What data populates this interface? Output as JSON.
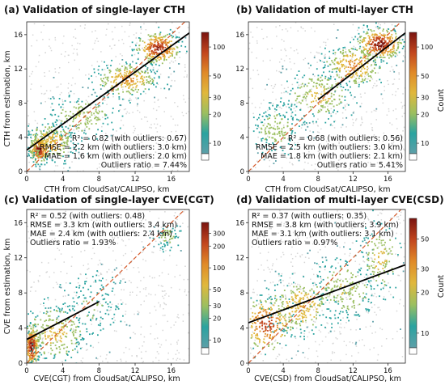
{
  "chart_data": [
    {
      "type": "scatter",
      "title": "(a) Validation of single-layer CTH",
      "xlabel": "CTH from CloudSat/CALIPSO, km",
      "ylabel": "CTH from estimation, km",
      "xlim": [
        0,
        18
      ],
      "ylim": [
        0,
        17.5
      ],
      "xticks": [
        0,
        4,
        8,
        12,
        16
      ],
      "yticks": [
        0,
        4,
        8,
        12,
        16
      ],
      "fit_line": [
        [
          0,
          2.5
        ],
        [
          18,
          16.2
        ]
      ],
      "stats": [
        "R² = 0.82 (with outliers: 0.67)",
        "RMSE = 2.2 km (with outliers: 3.0 km)",
        "MAE = 1.6 km (with outliers: 2.0 km)",
        "Outliers ratio = 7.44%"
      ],
      "stats_position": "bottom-right",
      "colorbar": {
        "label": "",
        "ticks": [
          "10",
          "20",
          "30",
          "50",
          "100"
        ]
      },
      "point_clusters": [
        {
          "x": 1.3,
          "y": 2.6,
          "sx": 0.5,
          "sy": 0.8,
          "n": 220,
          "level": 0.95
        },
        {
          "x": 2.5,
          "y": 3.5,
          "sx": 1.5,
          "sy": 1.2,
          "n": 260,
          "level": 0.55
        },
        {
          "x": 6.0,
          "y": 6.5,
          "sx": 2.0,
          "sy": 1.3,
          "n": 180,
          "level": 0.4
        },
        {
          "x": 11.0,
          "y": 10.8,
          "sx": 1.8,
          "sy": 1.0,
          "n": 260,
          "level": 0.6
        },
        {
          "x": 14.5,
          "y": 14.5,
          "sx": 1.2,
          "sy": 0.9,
          "n": 300,
          "level": 0.9
        }
      ]
    },
    {
      "type": "scatter",
      "title": "(b) Validation of multi-layer CTH",
      "xlabel": "CTH from CloudSat/CALIPSO, km",
      "ylabel": "",
      "xlim": [
        0,
        18
      ],
      "ylim": [
        0,
        17.5
      ],
      "xticks": [
        0,
        4,
        8,
        12,
        16
      ],
      "yticks": [
        0,
        4,
        8,
        12,
        16
      ],
      "fit_line": [
        [
          8,
          8.4
        ],
        [
          18,
          16.2
        ]
      ],
      "stats": [
        "R² = 0.68 (with outliers: 0.56)",
        "RMSE = 2.5 km (with outliers: 3.0 km)",
        "MAE = 1.8 km (with outliers: 2.1 km)",
        "Outliers ratio = 5.41%"
      ],
      "stats_position": "bottom-right",
      "colorbar": {
        "label": "Count",
        "ticks": [
          "10",
          "20",
          "30",
          "50",
          "100"
        ]
      },
      "point_clusters": [
        {
          "x": 3.0,
          "y": 5.0,
          "sx": 1.5,
          "sy": 1.5,
          "n": 170,
          "level": 0.35
        },
        {
          "x": 8.0,
          "y": 9.0,
          "sx": 2.0,
          "sy": 1.6,
          "n": 220,
          "level": 0.45
        },
        {
          "x": 12.0,
          "y": 12.5,
          "sx": 1.8,
          "sy": 1.3,
          "n": 250,
          "level": 0.6
        },
        {
          "x": 15.0,
          "y": 15.0,
          "sx": 1.3,
          "sy": 0.9,
          "n": 330,
          "level": 0.95
        }
      ]
    },
    {
      "type": "scatter",
      "title": "(c) Validation of single-layer CVE(CGT)",
      "xlabel": "CVE(CGT) from CloudSat/CALIPSO, km",
      "ylabel": "CVE from estimation, km",
      "xlim": [
        0,
        18
      ],
      "ylim": [
        0,
        17.5
      ],
      "xticks": [
        0,
        4,
        8,
        12,
        16
      ],
      "yticks": [
        0,
        4,
        8,
        12,
        16
      ],
      "fit_line": [
        [
          0,
          2.7
        ],
        [
          8,
          7.0
        ]
      ],
      "stats": [
        "R² = 0.52 (with outliers: 0.48)",
        "RMSE = 3.3 km (with outliers: 3.4 km)",
        "MAE = 2.4 km (with outliers: 2.4 km)",
        "Outliers ratio = 1.93%"
      ],
      "stats_position": "top-left",
      "colorbar": {
        "label": "",
        "ticks": [
          "10",
          "20",
          "30",
          "50",
          "100",
          "200",
          "300"
        ]
      },
      "point_clusters": [
        {
          "x": 0.5,
          "y": 2.0,
          "sx": 0.4,
          "sy": 1.2,
          "n": 280,
          "level": 0.95
        },
        {
          "x": 3.0,
          "y": 3.5,
          "sx": 2.0,
          "sy": 1.8,
          "n": 260,
          "level": 0.45
        },
        {
          "x": 7.0,
          "y": 6.5,
          "sx": 2.0,
          "sy": 2.0,
          "n": 140,
          "level": 0.25
        },
        {
          "x": 15.5,
          "y": 14.5,
          "sx": 0.8,
          "sy": 0.8,
          "n": 70,
          "level": 0.3
        }
      ]
    },
    {
      "type": "scatter",
      "title": "(d) Validation of multi-layer CVE(CSD)",
      "xlabel": "CVE(CSD) from CloudSat/CALIPSO, km",
      "ylabel": "",
      "xlim": [
        0,
        18
      ],
      "ylim": [
        0,
        17.5
      ],
      "xticks": [
        0,
        4,
        8,
        12,
        16
      ],
      "yticks": [
        0,
        4,
        8,
        12,
        16
      ],
      "fit_line": [
        [
          0,
          4.6
        ],
        [
          18,
          11.2
        ]
      ],
      "stats": [
        "R² = 0.37 (with outliers: 0.35)",
        "RMSE = 3.8 km (with outliers: 3.9 km)",
        "MAE = 3.1 km (with outliers: 3.1 km)",
        "Outliers ratio = 0.97%"
      ],
      "stats_position": "top-left",
      "colorbar": {
        "label": "Count",
        "ticks": [
          "10",
          "20",
          "30",
          "50"
        ]
      },
      "point_clusters": [
        {
          "x": 2.0,
          "y": 4.5,
          "sx": 1.6,
          "sy": 1.6,
          "n": 250,
          "level": 0.8
        },
        {
          "x": 6.0,
          "y": 6.5,
          "sx": 2.0,
          "sy": 1.7,
          "n": 260,
          "level": 0.55
        },
        {
          "x": 11.0,
          "y": 8.5,
          "sx": 2.0,
          "sy": 2.0,
          "n": 220,
          "level": 0.4
        },
        {
          "x": 15.0,
          "y": 12.0,
          "sx": 1.2,
          "sy": 2.2,
          "n": 130,
          "level": 0.45
        }
      ]
    }
  ],
  "colors": {
    "fit_line": "#000000",
    "one_to_one_line": "#d45a2b",
    "background_points": "#d6d6d6",
    "colormap": [
      "#5e9fa8",
      "#2aa3a0",
      "#9bbf60",
      "#e0b83c",
      "#e08a28",
      "#c2461e",
      "#7a1410"
    ]
  }
}
